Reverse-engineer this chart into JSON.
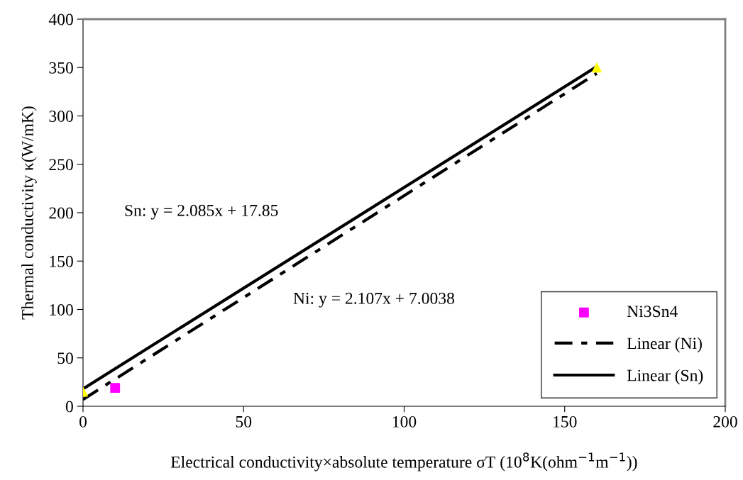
{
  "chart_data": {
    "type": "scatter",
    "xlabel": "Electrical conductivity×absolute temperature σT (10$^{8}$K(ohm$^{−1}$m$^{−1}$))",
    "ylabel": "Thermal conductivity κ(W/mK)",
    "xlim": [
      0,
      200
    ],
    "xticks": [
      0,
      50,
      100,
      150,
      200
    ],
    "ylim": [
      0,
      400
    ],
    "yticks": [
      0,
      50,
      100,
      150,
      200,
      250,
      300,
      350,
      400
    ],
    "grid": false,
    "legend": "bottom right",
    "series": [
      {
        "name": "Ni3Sn4",
        "marker": "square",
        "color": "#ff00ff",
        "x": [
          10
        ],
        "values": [
          19
        ]
      },
      {
        "marker": "triangle",
        "color": "#ffff00",
        "x": [
          0,
          160
        ],
        "values": [
          15,
          350
        ]
      },
      {
        "name": "Linear (Ni)",
        "type": "line",
        "line_style": "dashdot",
        "color": "#000000",
        "x": [
          0,
          160
        ],
        "values": [
          7,
          344
        ]
      },
      {
        "name": "Linear (Sn)",
        "type": "line",
        "line_style": "solid",
        "color": "#000000",
        "x": [
          0,
          160
        ],
        "values": [
          18,
          351
        ]
      }
    ],
    "annotations": [
      "Sn: y = 2.085x + 17.85",
      "Ni: y = 2.107x + 7.0038"
    ]
  }
}
